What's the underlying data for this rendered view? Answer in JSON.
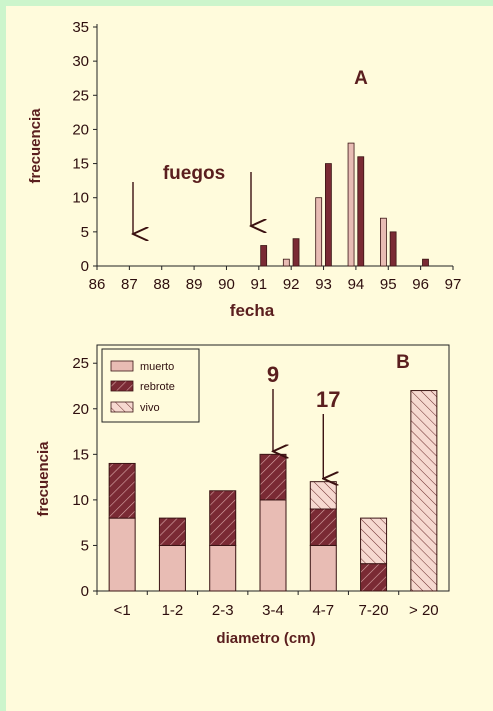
{
  "chart_data": [
    {
      "type": "bar",
      "panel_label": "A",
      "xlabel": "fecha",
      "ylabel": "frecuencia",
      "xlim": [
        86,
        97
      ],
      "ylim": [
        0,
        35
      ],
      "x_ticks": [
        86,
        87,
        88,
        89,
        90,
        91,
        92,
        93,
        94,
        95,
        96,
        97
      ],
      "y_ticks": [
        0,
        5,
        10,
        15,
        20,
        25,
        30,
        35
      ],
      "colors": {
        "light": "#e8bcb4",
        "dark": "#7a2a34",
        "edge": "#3a1414"
      },
      "bars": [
        {
          "x": 91.15,
          "value": 3,
          "shade": "dark"
        },
        {
          "x": 91.85,
          "value": 1,
          "shade": "light"
        },
        {
          "x": 92.15,
          "value": 4,
          "shade": "dark"
        },
        {
          "x": 92.85,
          "value": 10,
          "shade": "light"
        },
        {
          "x": 93.15,
          "value": 15,
          "shade": "dark"
        },
        {
          "x": 93.85,
          "value": 18,
          "shade": "light"
        },
        {
          "x": 94.15,
          "value": 16,
          "shade": "dark"
        },
        {
          "x": 94.85,
          "value": 7,
          "shade": "light"
        },
        {
          "x": 95.15,
          "value": 5,
          "shade": "dark"
        },
        {
          "x": 96.15,
          "value": 1,
          "shade": "dark"
        }
      ],
      "annotations": {
        "fire_label": "fuegos",
        "fire_arrows_at": [
          87,
          90.8
        ]
      }
    },
    {
      "type": "bar",
      "stacked": true,
      "panel_label": "B",
      "xlabel": "diametro (cm)",
      "ylabel": "frecuencia",
      "ylim": [
        0,
        27
      ],
      "y_ticks": [
        0,
        5,
        10,
        15,
        20,
        25
      ],
      "categories": [
        "<1",
        "1-2",
        "2-3",
        "3-4",
        "4-7",
        "7-20",
        "> 20"
      ],
      "series": [
        {
          "name": "muerto",
          "pattern": "solid-light",
          "values": [
            8,
            5,
            5,
            10,
            5,
            0,
            0
          ]
        },
        {
          "name": "rebrote",
          "pattern": "hatch-dark",
          "values": [
            6,
            3,
            6,
            5,
            4,
            3,
            0
          ]
        },
        {
          "name": "vivo",
          "pattern": "hatch-light",
          "values": [
            0,
            0,
            0,
            0,
            3,
            5,
            22
          ]
        }
      ],
      "legend_position": "top-left",
      "annotations": [
        {
          "label": "9",
          "category": "3-4"
        },
        {
          "label": "17",
          "category": "4-7"
        }
      ]
    }
  ]
}
